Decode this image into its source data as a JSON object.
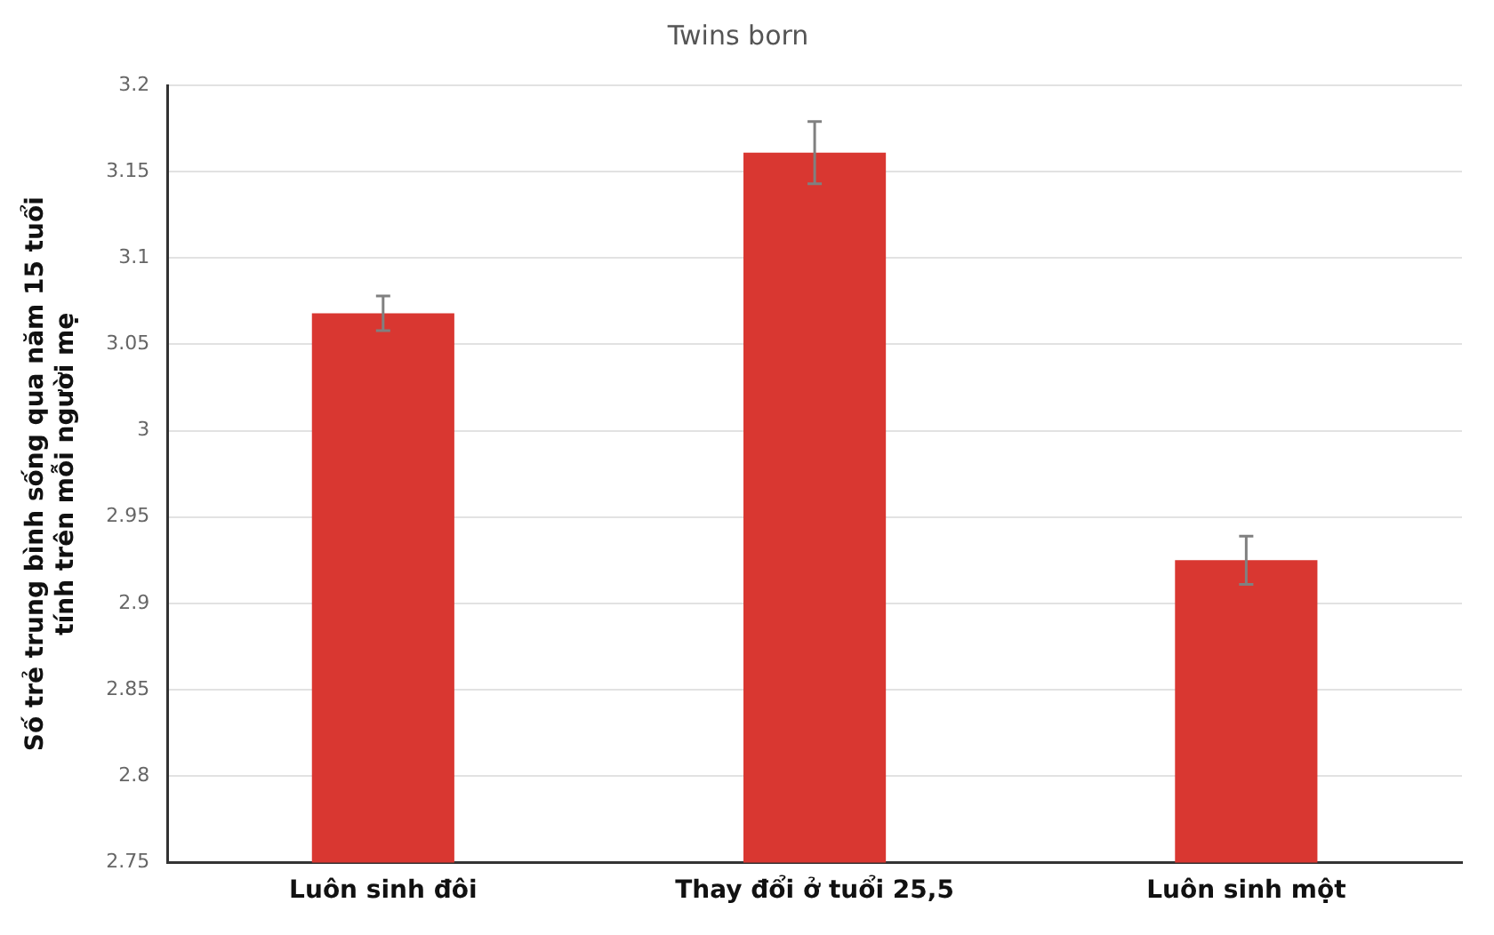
{
  "chart_data": {
    "type": "bar",
    "title": "Twins born",
    "ylabel": "Số trẻ trung bình sống qua năm 15 tuổi\ntính trên mỗi người mẹ",
    "categories": [
      "Luôn sinh đôi",
      "Thay đổi ở tuổi 25,5",
      "Luôn sinh một"
    ],
    "values": [
      3.068,
      3.161,
      2.925
    ],
    "errors": [
      0.01,
      0.018,
      0.014
    ],
    "color": "#d93731",
    "ylim": [
      2.75,
      3.2
    ],
    "yticks": [
      2.75,
      2.8,
      2.85,
      2.9,
      2.95,
      3,
      3.05,
      3.1,
      3.15,
      3.2
    ],
    "grid": "y",
    "legend": false
  }
}
